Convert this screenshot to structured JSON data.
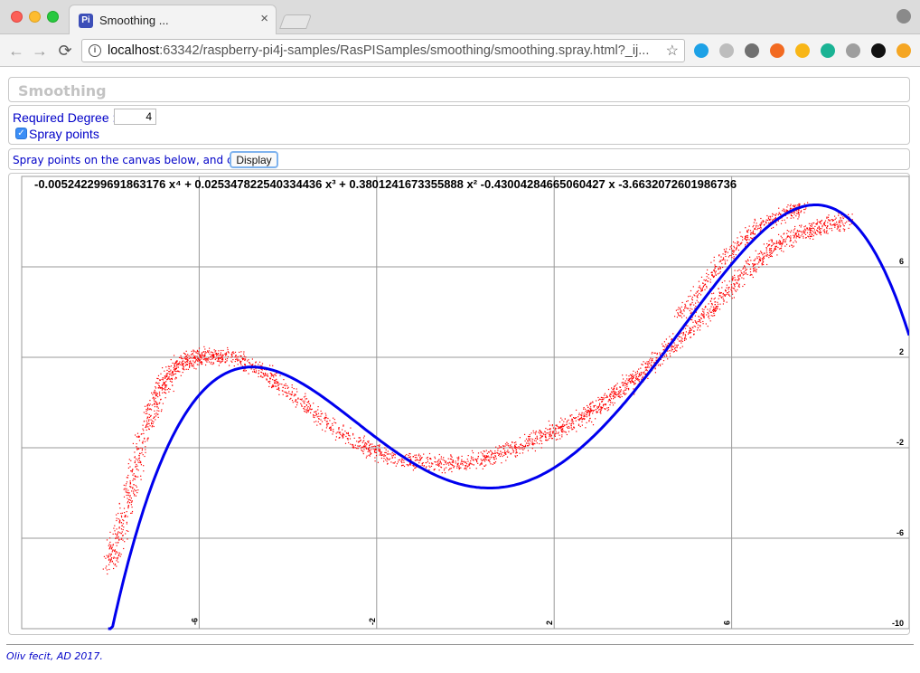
{
  "browser": {
    "tab_title": "Smoothing ...",
    "tab_close": "×",
    "favicon_text": "Pi",
    "url_host": "localhost",
    "url_rest": ":63342/raspberry-pi4j-samples/RasPISamples/smoothing/smoothing.spray.html?_ij...",
    "nav_back": "←",
    "nav_forward": "→",
    "nav_reload": "⟳",
    "star": "☆",
    "extensions": [
      {
        "name": "circle-ext-icon",
        "color": "#1da1e6"
      },
      {
        "name": "dots-ext-icon",
        "color": "#bdbdbd"
      },
      {
        "name": "mail-ext-icon",
        "color": "#707070"
      },
      {
        "name": "orange-ext-icon",
        "color": "#f26a21"
      },
      {
        "name": "yellow-ext-icon",
        "color": "#f8b617"
      },
      {
        "name": "m-ext-icon",
        "color": "#1ab394"
      },
      {
        "name": "arrow-ext-icon",
        "color": "#9e9e9e"
      },
      {
        "name": "ring-ext-icon",
        "color": "#111111"
      },
      {
        "name": "alert-ext-icon",
        "color": "#f5a623"
      }
    ]
  },
  "page": {
    "title": "Smoothing",
    "degree_label": "Required Degree :",
    "degree_value": "4",
    "spray_label": "Spray points",
    "spray_checked": true,
    "instruction": "Spray points on the canvas below, and click",
    "display_button": "Display",
    "footer": "Oliv fecit, AD 2017."
  },
  "chart_data": {
    "type": "scatter",
    "equation": "-0.005242299691863176 x⁴ + 0.025347822540334436 x³ + 0.3801241673355888 x² -0.43004284665060427 x -3.6632072601986736",
    "coefficients": [
      -3.6632072601986736,
      -0.43004284665060427,
      0.3801241673355888,
      0.025347822540334436,
      -0.005242299691863176
    ],
    "xlim": [
      -10,
      10
    ],
    "ylim": [
      -10,
      10
    ],
    "x_ticks": [
      "-6",
      "-2",
      "2",
      "6"
    ],
    "y_ticks": [
      "6",
      "2",
      "-2",
      "-6",
      "-10"
    ],
    "grid": true,
    "point_color": "#ff0000",
    "curve_color": "#0000ee",
    "spray_path": [
      [
        -8.0,
        -7.2
      ],
      [
        -7.8,
        -5.8
      ],
      [
        -7.5,
        -3.5
      ],
      [
        -7.2,
        -1.0
      ],
      [
        -6.9,
        0.6
      ],
      [
        -6.6,
        1.5
      ],
      [
        -6.2,
        1.9
      ],
      [
        -5.8,
        2.1
      ],
      [
        -5.2,
        2.0
      ],
      [
        -4.5,
        1.3
      ],
      [
        -3.8,
        0.2
      ],
      [
        -3.0,
        -1.1
      ],
      [
        -2.2,
        -2.0
      ],
      [
        -1.4,
        -2.5
      ],
      [
        -0.6,
        -2.7
      ],
      [
        0.2,
        -2.6
      ],
      [
        0.9,
        -2.2
      ],
      [
        1.6,
        -1.6
      ],
      [
        2.2,
        -1.1
      ],
      [
        2.8,
        -0.4
      ],
      [
        3.3,
        0.3
      ],
      [
        3.8,
        1.1
      ],
      [
        4.3,
        1.9
      ],
      [
        5.0,
        3.1
      ],
      [
        5.6,
        4.3
      ],
      [
        6.2,
        5.6
      ],
      [
        6.8,
        6.7
      ],
      [
        7.4,
        7.4
      ],
      [
        8.0,
        7.8
      ],
      [
        8.6,
        8.1
      ]
    ],
    "spray_path_upper": [
      [
        4.8,
        3.8
      ],
      [
        5.4,
        5.3
      ],
      [
        6.0,
        6.8
      ],
      [
        6.6,
        7.8
      ],
      [
        7.2,
        8.4
      ],
      [
        7.6,
        8.6
      ]
    ]
  }
}
